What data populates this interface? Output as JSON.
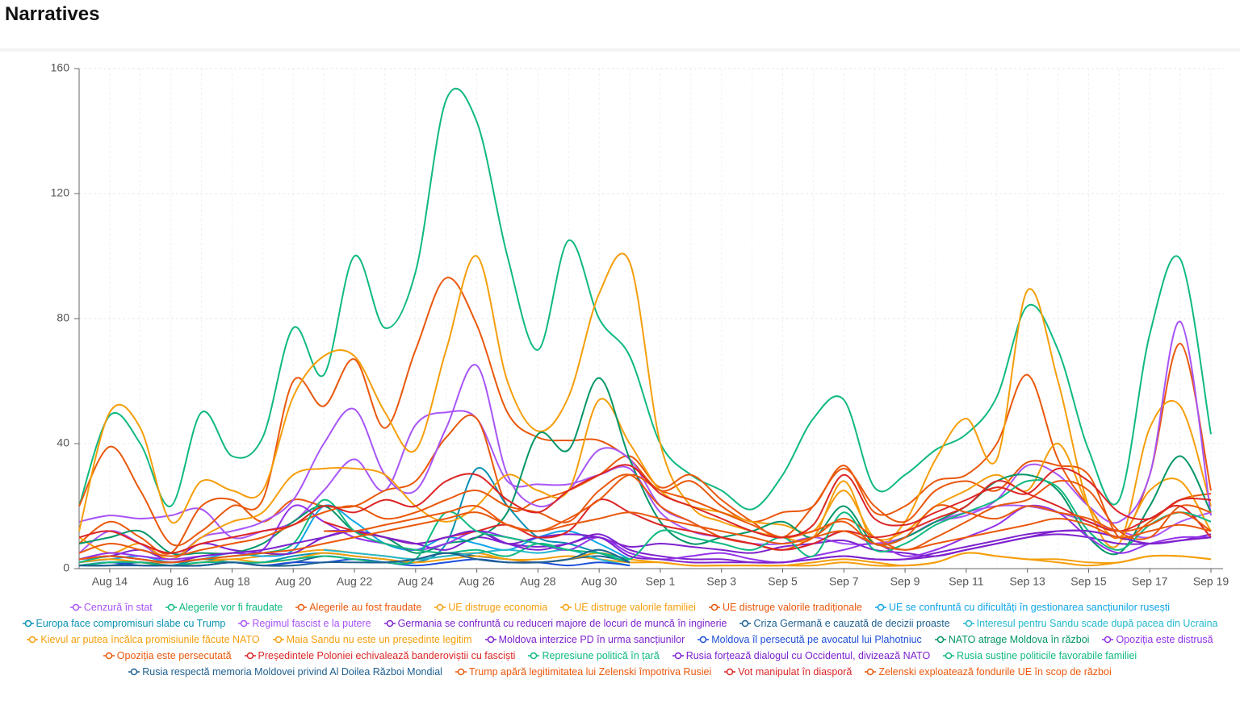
{
  "chart_data": {
    "type": "line",
    "title": "Narratives",
    "categories": [
      null,
      "Aug 14",
      null,
      "Aug 16",
      null,
      "Aug 18",
      null,
      "Aug 20",
      null,
      "Aug 22",
      null,
      "Aug 24",
      null,
      "Aug 26",
      null,
      "Aug 28",
      null,
      "Aug 30",
      null,
      "Sep 1",
      null,
      "Sep 3",
      null,
      "Sep 5",
      null,
      "Sep 7",
      null,
      "Sep 9",
      null,
      "Sep 11",
      null,
      "Sep 13",
      null,
      "Sep 15",
      null,
      "Sep 17",
      null,
      "Sep 19"
    ],
    "ylim": [
      0,
      160
    ],
    "yticks": [
      0,
      40,
      80,
      120,
      160
    ],
    "grid": true,
    "series": [
      {
        "name": "Cenzură în stat",
        "color": "#a855f7",
        "values": [
          15,
          17,
          16,
          17,
          19,
          10,
          12,
          15,
          25,
          35,
          25,
          46,
          50,
          48,
          28,
          27,
          27,
          30,
          32,
          18,
          12,
          10,
          8,
          8,
          10,
          8,
          8,
          10,
          15,
          18,
          20,
          20,
          18,
          15,
          12,
          10,
          15,
          18
        ]
      },
      {
        "name": "Alegerile vor fi fraudate",
        "color": "#10b981",
        "values": [
          20,
          49,
          40,
          20,
          50,
          36,
          42,
          77,
          62,
          100,
          77,
          95,
          150,
          143,
          100,
          70,
          105,
          80,
          68,
          40,
          30,
          25,
          19,
          30,
          48,
          54,
          26,
          30,
          38,
          43,
          55,
          84,
          70,
          38,
          22,
          75,
          99,
          43
        ]
      },
      {
        "name": "Alegerile au fost fraudate",
        "color": "#ea580c",
        "values": [
          20,
          39,
          25,
          8,
          12,
          20,
          22,
          60,
          52,
          67,
          45,
          70,
          93,
          78,
          50,
          42,
          41,
          41,
          35,
          25,
          28,
          20,
          15,
          18,
          20,
          33,
          18,
          20,
          28,
          30,
          40,
          62,
          35,
          20,
          10,
          30,
          72,
          25
        ]
      },
      {
        "name": "UE distruge economia",
        "color": "#f59e0b",
        "values": [
          12,
          50,
          45,
          15,
          28,
          25,
          25,
          55,
          68,
          68,
          50,
          38,
          70,
          100,
          60,
          44,
          55,
          88,
          98,
          40,
          20,
          15,
          12,
          10,
          10,
          28,
          8,
          15,
          35,
          48,
          35,
          89,
          60,
          20,
          8,
          45,
          52,
          20
        ]
      },
      {
        "name": "UE distruge valorile familiei",
        "color": "#f59e0b",
        "values": [
          2,
          3,
          2,
          2,
          3,
          3,
          4,
          5,
          6,
          5,
          4,
          3,
          4,
          5,
          3,
          3,
          4,
          3,
          2,
          2,
          1,
          1,
          1,
          1,
          1,
          2,
          1,
          1,
          2,
          5,
          4,
          3,
          3,
          2,
          2,
          4,
          4,
          3
        ]
      },
      {
        "name": "UE distruge valorile tradiționale",
        "color": "#ea580c",
        "values": [
          8,
          15,
          10,
          5,
          20,
          22,
          15,
          22,
          20,
          20,
          25,
          28,
          42,
          48,
          20,
          22,
          25,
          30,
          36,
          26,
          30,
          22,
          15,
          10,
          20,
          32,
          20,
          15,
          25,
          28,
          25,
          34,
          33,
          30,
          10,
          15,
          22,
          24
        ]
      },
      {
        "name": "UE se confruntă cu dificultăți în gestionarea sancțiunilor rusești",
        "color": "#0ea5e9",
        "values": [
          2,
          3,
          4,
          2,
          3,
          5,
          4,
          6,
          20,
          15,
          8,
          6,
          10,
          8,
          6,
          10,
          12,
          8,
          3,
          null,
          null,
          null,
          null,
          null,
          null,
          null,
          null,
          null,
          null,
          null,
          null,
          null,
          null,
          null,
          null,
          null,
          null,
          null
        ]
      },
      {
        "name": "Europa face compromisuri slabe cu Trump",
        "color": "#0891b2",
        "values": [
          1,
          2,
          2,
          1,
          3,
          2,
          2,
          4,
          5,
          4,
          3,
          2,
          8,
          32,
          20,
          10,
          8,
          5,
          2,
          null,
          null,
          null,
          null,
          null,
          null,
          null,
          null,
          null,
          null,
          null,
          null,
          null,
          null,
          null,
          null,
          null,
          null,
          null
        ]
      },
      {
        "name": "Regimul fascist e la putere",
        "color": "#a855f7",
        "values": [
          5,
          12,
          8,
          3,
          10,
          12,
          15,
          22,
          40,
          51,
          30,
          25,
          45,
          65,
          30,
          20,
          25,
          38,
          35,
          20,
          15,
          10,
          8,
          6,
          8,
          12,
          8,
          10,
          15,
          17,
          22,
          33,
          30,
          20,
          15,
          30,
          79,
          17
        ]
      },
      {
        "name": "Germania se confruntă cu reduceri majore de locuri de muncă în inginerie",
        "color": "#7e22ce",
        "values": [
          3,
          4,
          6,
          3,
          8,
          6,
          5,
          5,
          10,
          12,
          10,
          8,
          6,
          10,
          8,
          7,
          8,
          11,
          6,
          4,
          3,
          3,
          2,
          2,
          3,
          4,
          3,
          3,
          4,
          6,
          8,
          10,
          11,
          10,
          8,
          8,
          9,
          10
        ]
      },
      {
        "name": "Criza Germană e cauzată de decizii proaste",
        "color": "#1e6091",
        "values": [
          1,
          1,
          2,
          1,
          1,
          2,
          1,
          2,
          4,
          3,
          2,
          3,
          5,
          4,
          3,
          2,
          3,
          4,
          2,
          null,
          null,
          null,
          null,
          null,
          null,
          null,
          null,
          null,
          null,
          null,
          null,
          null,
          null,
          null,
          null,
          null,
          null,
          null
        ]
      },
      {
        "name": "Interesul pentru Sandu scade după pacea din Ucraina",
        "color": "#22b8cf",
        "values": [
          null,
          null,
          null,
          null,
          null,
          null,
          null,
          null,
          6,
          5,
          4,
          3,
          4,
          5,
          6,
          5,
          6,
          3,
          1,
          null,
          null,
          null,
          null,
          null,
          null,
          null,
          null,
          null,
          null,
          null,
          null,
          null,
          null,
          null,
          null,
          null,
          null,
          null
        ]
      },
      {
        "name": "Kievul ar putea încălca promisiunile făcute NATO",
        "color": "#f59e0b",
        "values": [
          2,
          3,
          2,
          1,
          2,
          3,
          2,
          3,
          5,
          4,
          3,
          2,
          3,
          4,
          3,
          2,
          3,
          5,
          3,
          2,
          1,
          1,
          1,
          1,
          2,
          3,
          2,
          1,
          2,
          5,
          4,
          3,
          2,
          1,
          2,
          4,
          4,
          3
        ]
      },
      {
        "name": "Maia Sandu nu este un președinte legitim",
        "color": "#f59e0b",
        "values": [
          10,
          5,
          8,
          3,
          10,
          15,
          18,
          30,
          32,
          32,
          30,
          20,
          15,
          20,
          30,
          25,
          25,
          54,
          40,
          25,
          20,
          18,
          15,
          14,
          12,
          25,
          10,
          12,
          20,
          25,
          30,
          25,
          40,
          20,
          10,
          25,
          28,
          12
        ]
      },
      {
        "name": "Moldova interzice PD în urma sancțiunilor",
        "color": "#7e22ce",
        "values": [
          null,
          null,
          null,
          null,
          null,
          null,
          null,
          null,
          12,
          12,
          10,
          8,
          10,
          12,
          8,
          10,
          11,
          10,
          7,
          8,
          7,
          6,
          5,
          7,
          8,
          9,
          6,
          5,
          4,
          6,
          8,
          10,
          12,
          12,
          10,
          8,
          9,
          11
        ]
      },
      {
        "name": "Moldova îl persecută pe avocatul lui Plahotniuc",
        "color": "#1d4ed8",
        "values": [
          1,
          2,
          1,
          1,
          1,
          2,
          1,
          2,
          2,
          3,
          2,
          1,
          2,
          3,
          2,
          2,
          1,
          2,
          1,
          null,
          null,
          null,
          null,
          null,
          null,
          null,
          null,
          null,
          null,
          null,
          null,
          null,
          null,
          null,
          null,
          null,
          null,
          null
        ]
      },
      {
        "name": "NATO atrage Moldova în război",
        "color": "#059669",
        "values": [
          8,
          10,
          12,
          5,
          5,
          5,
          8,
          15,
          20,
          12,
          10,
          5,
          8,
          10,
          18,
          43,
          38,
          61,
          35,
          15,
          8,
          10,
          12,
          15,
          10,
          20,
          8,
          10,
          15,
          20,
          28,
          30,
          25,
          10,
          5,
          20,
          36,
          18
        ]
      },
      {
        "name": "Opoziția este distrusă",
        "color": "#9333ea",
        "values": [
          3,
          5,
          4,
          3,
          4,
          5,
          6,
          20,
          15,
          10,
          8,
          6,
          8,
          12,
          10,
          8,
          6,
          10,
          5,
          3,
          4,
          5,
          3,
          2,
          4,
          6,
          8,
          4,
          6,
          10,
          14,
          20,
          18,
          10,
          5,
          8,
          10,
          10
        ]
      },
      {
        "name": "Opoziția este persecutată",
        "color": "#ea580c",
        "values": [
          5,
          8,
          6,
          4,
          6,
          8,
          10,
          14,
          18,
          20,
          16,
          18,
          22,
          25,
          20,
          18,
          15,
          25,
          30,
          20,
          15,
          10,
          8,
          6,
          10,
          16,
          10,
          6,
          10,
          15,
          20,
          22,
          28,
          25,
          12,
          10,
          20,
          18
        ]
      },
      {
        "name": "Președintele Poloniei echivalează banderoviștii cu fasciști",
        "color": "#dc2626",
        "values": [
          null,
          null,
          null,
          null,
          null,
          null,
          null,
          null,
          15,
          12,
          10,
          8,
          10,
          12,
          14,
          10,
          12,
          22,
          18,
          14,
          12,
          10,
          8,
          6,
          8,
          12,
          10,
          12,
          16,
          20,
          28,
          24,
          20,
          15,
          12,
          16,
          20,
          10
        ]
      },
      {
        "name": "Represiune politică în țară",
        "color": "#10b981",
        "values": [
          2,
          4,
          3,
          2,
          3,
          4,
          5,
          8,
          22,
          12,
          8,
          6,
          5,
          6,
          4,
          8,
          6,
          5,
          3,
          12,
          10,
          8,
          6,
          10,
          4,
          18,
          6,
          8,
          14,
          18,
          22,
          28,
          26,
          12,
          6,
          14,
          18,
          15
        ]
      },
      {
        "name": "Rusia forțează dialogul cu Occidentul, divizează NATO",
        "color": "#7e22ce",
        "values": [
          3,
          4,
          3,
          2,
          4,
          5,
          6,
          8,
          10,
          12,
          10,
          8,
          10,
          12,
          8,
          6,
          8,
          10,
          4,
          3,
          2,
          2,
          2,
          2,
          3,
          4,
          3,
          3,
          5,
          7,
          9,
          11,
          12,
          12,
          10,
          8,
          9,
          10
        ]
      },
      {
        "name": "Rusia susține politicile favorabile familiei",
        "color": "#10b981",
        "values": [
          1,
          2,
          2,
          1,
          2,
          2,
          2,
          3,
          4,
          3,
          2,
          3,
          18,
          12,
          10,
          8,
          6,
          5,
          3,
          null,
          null,
          null,
          null,
          null,
          null,
          null,
          null,
          null,
          null,
          null,
          null,
          null,
          null,
          null,
          null,
          null,
          null,
          null
        ]
      },
      {
        "name": "Rusia respectă memoria Moldovei privind Al Doilea Război Mondial",
        "color": "#1e6091",
        "values": [
          1,
          1,
          1,
          1,
          1,
          2,
          1,
          1,
          2,
          2,
          2,
          3,
          5,
          3,
          2,
          2,
          3,
          6,
          2,
          null,
          null,
          null,
          null,
          null,
          null,
          null,
          null,
          null,
          null,
          null,
          null,
          null,
          null,
          null,
          null,
          null,
          null,
          null
        ]
      },
      {
        "name": "Trump apără legitimitatea lui Zelenski împotriva Rusiei",
        "color": "#ea580c",
        "values": [
          null,
          null,
          null,
          null,
          null,
          null,
          null,
          null,
          12,
          12,
          14,
          16,
          18,
          20,
          14,
          12,
          16,
          22,
          30,
          25,
          22,
          18,
          14,
          10,
          12,
          15,
          8,
          10,
          20,
          18,
          16,
          20,
          18,
          16,
          12,
          14,
          18,
          12
        ]
      },
      {
        "name": "Vot manipulat în diasporă",
        "color": "#dc2626",
        "values": [
          10,
          12,
          8,
          5,
          8,
          10,
          12,
          14,
          20,
          18,
          22,
          20,
          28,
          30,
          22,
          18,
          25,
          30,
          33,
          24,
          20,
          16,
          12,
          10,
          14,
          30,
          16,
          14,
          18,
          22,
          26,
          24,
          32,
          28,
          18,
          16,
          22,
          22
        ]
      },
      {
        "name": "Zelenski exploatează fondurile UE în scop de război",
        "color": "#ea580c",
        "values": [
          3,
          4,
          3,
          2,
          3,
          4,
          5,
          6,
          8,
          10,
          12,
          14,
          16,
          18,
          14,
          12,
          14,
          16,
          18,
          16,
          14,
          12,
          10,
          8,
          10,
          12,
          8,
          6,
          8,
          10,
          12,
          14,
          16,
          14,
          10,
          12,
          14,
          12
        ]
      }
    ]
  }
}
